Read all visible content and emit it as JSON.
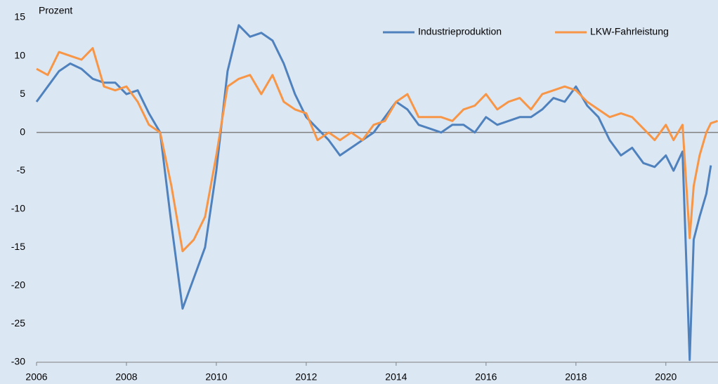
{
  "chart_data": {
    "type": "line",
    "y_label": "Prozent",
    "x": [
      2006,
      2006.25,
      2006.5,
      2006.75,
      2007,
      2007.25,
      2007.5,
      2007.75,
      2008,
      2008.25,
      2008.5,
      2008.75,
      2009,
      2009.25,
      2009.5,
      2009.75,
      2010,
      2010.25,
      2010.5,
      2010.75,
      2011,
      2011.25,
      2011.5,
      2011.75,
      2012,
      2012.25,
      2012.5,
      2012.75,
      2013,
      2013.25,
      2013.5,
      2013.75,
      2014,
      2014.25,
      2014.5,
      2014.75,
      2015,
      2015.25,
      2015.5,
      2015.75,
      2016,
      2016.25,
      2016.5,
      2016.75,
      2017,
      2017.25,
      2017.5,
      2017.75,
      2018,
      2018.25,
      2018.5,
      2018.75,
      2019,
      2019.25,
      2019.5,
      2019.75,
      2020,
      2020.17,
      2020.37,
      2020.53,
      2020.62,
      2020.75,
      2020.9,
      2021,
      2021.15
    ],
    "series": [
      {
        "name": "Industrieproduktion",
        "color": "#4f81bd",
        "values": [
          4,
          6,
          8,
          9,
          8.3,
          7,
          6.5,
          6.5,
          5,
          5.5,
          2.5,
          0,
          -12,
          -23,
          -19,
          -15,
          -5,
          8,
          14,
          12.5,
          13,
          12,
          9,
          5,
          2,
          0.5,
          -1,
          -3,
          -2,
          -1,
          0,
          2,
          4,
          3,
          1,
          0.5,
          0,
          1,
          1,
          0,
          2,
          1,
          1.5,
          2,
          2,
          3,
          4.5,
          4,
          6,
          3.5,
          2,
          -1,
          -3,
          -2,
          -4,
          -4.5,
          -3,
          -5,
          -2.5,
          -29.7,
          -14,
          -11,
          -8,
          -4.3,
          null
        ]
      },
      {
        "name": "LKW-Fahrleistung",
        "color": "#f79646",
        "values": [
          8.3,
          7.5,
          10.5,
          10,
          9.5,
          11,
          6,
          5.5,
          6,
          4,
          1,
          0,
          -7,
          -15.5,
          -14,
          -11,
          -3,
          6,
          7,
          7.5,
          5,
          7.5,
          4,
          3,
          2.5,
          -1,
          0,
          -1,
          0,
          -1,
          1,
          1.5,
          4,
          5,
          2,
          2,
          2,
          1.5,
          3,
          3.5,
          5,
          3,
          4,
          4.5,
          3,
          5,
          5.5,
          6,
          5.5,
          4,
          3,
          2,
          2.5,
          2,
          0.5,
          -1,
          1,
          -1,
          1,
          -13.8,
          -7,
          -3,
          0,
          1.2,
          1.5
        ]
      }
    ],
    "xlim": [
      2006,
      2021.16
    ],
    "xticks": [
      2006,
      2008,
      2010,
      2012,
      2014,
      2016,
      2018,
      2020
    ],
    "ylim": [
      -30,
      15
    ],
    "yticks": [
      -30,
      -25,
      -20,
      -15,
      -10,
      -5,
      0,
      5,
      10,
      15
    ],
    "legend": "top-right"
  }
}
